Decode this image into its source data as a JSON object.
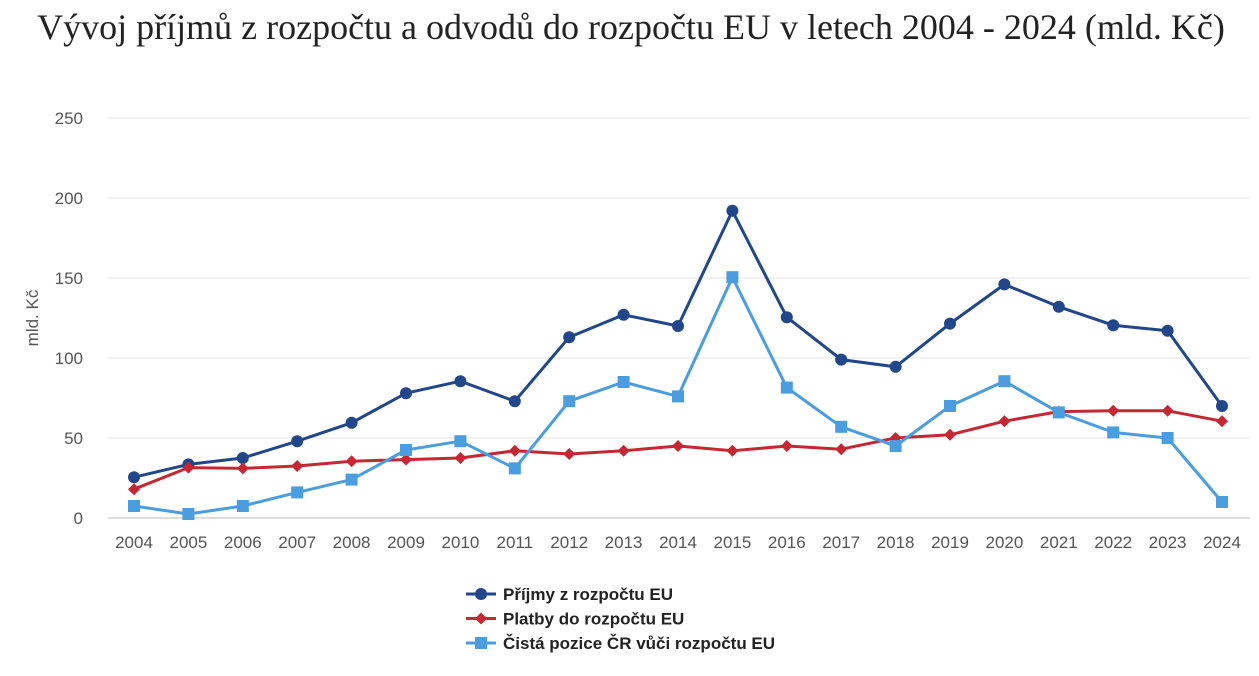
{
  "chart_data": {
    "type": "line",
    "title": "Vývoj příjmů z rozpočtu a odvodů do rozpočtu EU v letech 2004 - 2024 (mld. Kč)",
    "xlabel": "",
    "ylabel": "mld. Kč",
    "ylim": [
      0,
      250
    ],
    "yticks": [
      "0",
      "50",
      "100",
      "150",
      "200",
      "250"
    ],
    "grid": "horizontal",
    "legend_position": "bottom",
    "categories": [
      "2004",
      "2005",
      "2006",
      "2007",
      "2008",
      "2009",
      "2010",
      "2011",
      "2012",
      "2013",
      "2014",
      "2015",
      "2016",
      "2017",
      "2018",
      "2019",
      "2020",
      "2021",
      "2022",
      "2023",
      "2024"
    ],
    "series": [
      {
        "name": "Příjmy z rozpočtu EU",
        "color": "#21478a",
        "marker": "circle",
        "values": [
          25.5,
          33.5,
          37.5,
          48,
          59.5,
          78,
          85.5,
          73,
          113,
          127,
          120,
          192,
          125.5,
          99,
          94.5,
          121.5,
          146,
          132,
          120.5,
          117,
          70
        ]
      },
      {
        "name": "Platby do rozpočtu EU",
        "color": "#c62833",
        "marker": "diamond",
        "values": [
          18,
          31.5,
          31,
          32.5,
          35.5,
          36.5,
          37.5,
          42,
          40,
          42,
          45,
          42,
          45,
          43,
          50,
          52,
          60.5,
          66.5,
          67,
          67,
          60.5
        ]
      },
      {
        "name": "Čistá pozice ČR vůči rozpočtu EU",
        "color": "#4b9de0",
        "marker": "square",
        "values": [
          7.5,
          2.5,
          7.5,
          16,
          24,
          42.5,
          48,
          31,
          73,
          85,
          76,
          150.5,
          81.5,
          57,
          45,
          70,
          85.5,
          66,
          53.5,
          50,
          10
        ]
      }
    ]
  }
}
